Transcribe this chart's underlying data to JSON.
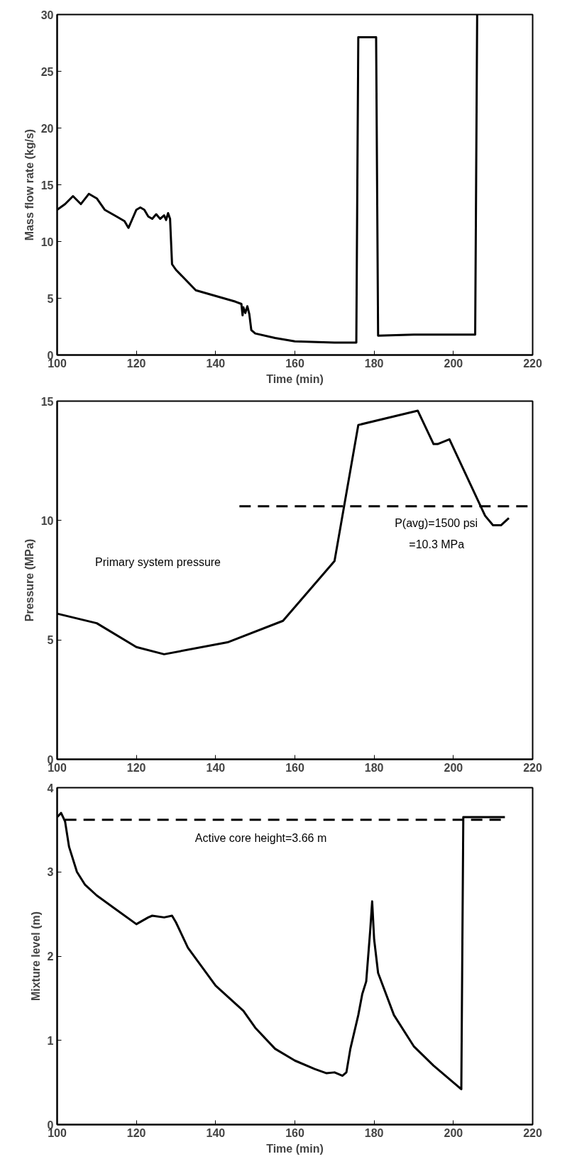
{
  "chart_data": [
    {
      "type": "line",
      "xlabel": "Time (min)",
      "ylabel": "Mass flow rate (kg/s)",
      "xlim": [
        100,
        220
      ],
      "ylim": [
        0,
        30
      ],
      "xticks": [
        100,
        120,
        140,
        160,
        180,
        200,
        220
      ],
      "yticks": [
        0,
        5,
        10,
        15,
        20,
        25,
        30
      ],
      "grid": false,
      "series": [
        {
          "color": "#000000",
          "line_style": "solid",
          "x": [
            100,
            102,
            104,
            106,
            108,
            110,
            112,
            115,
            117,
            118,
            119,
            120,
            121,
            122,
            123,
            124,
            125,
            126,
            127,
            127.5,
            128,
            128.5,
            129,
            130,
            135,
            140,
            145,
            146.5,
            146.8,
            147,
            147.5,
            148,
            148.5,
            149,
            150,
            155,
            160,
            170,
            175.5,
            176,
            180.5,
            181,
            190,
            205.5,
            206
          ],
          "values": [
            12.8,
            13.3,
            14,
            13.3,
            14.2,
            13.8,
            12.8,
            12.2,
            11.8,
            11.2,
            12,
            12.8,
            13,
            12.8,
            12.2,
            12,
            12.4,
            12,
            12.3,
            11.9,
            12.5,
            12,
            8,
            7.5,
            5.7,
            5.2,
            4.7,
            4.5,
            3.5,
            4.2,
            3.7,
            4.3,
            3.6,
            2.2,
            1.9,
            1.5,
            1.2,
            1.1,
            1.1,
            28,
            28,
            1.7,
            1.8,
            1.8,
            30
          ]
        }
      ]
    },
    {
      "type": "line",
      "ylabel": "Pressure (MPa)",
      "xlim": [
        100,
        220
      ],
      "ylim": [
        0,
        15
      ],
      "xticks": [
        100,
        120,
        140,
        160,
        180,
        200,
        220
      ],
      "yticks": [
        0,
        5,
        10,
        15
      ],
      "grid": false,
      "annotations": [
        "Primary system pressure",
        "P(avg)=1500 psi",
        "=10.3 MPa"
      ],
      "series": [
        {
          "color": "#000000",
          "line_style": "solid",
          "x": [
            100,
            110,
            120,
            127,
            143,
            157,
            170,
            176,
            191,
            195,
            196,
            199,
            208,
            210,
            212,
            214
          ],
          "values": [
            6.1,
            5.7,
            4.7,
            4.4,
            4.9,
            5.8,
            8.3,
            14,
            14.6,
            13.2,
            13.2,
            13.4,
            10.2,
            9.8,
            9.8,
            10.1
          ]
        },
        {
          "color": "#000000",
          "line_style": "dashed",
          "x": [
            146,
            220
          ],
          "values": [
            10.6,
            10.6
          ]
        }
      ]
    },
    {
      "type": "line",
      "xlabel": "Time (min)",
      "ylabel": "Mixture level (m)",
      "xlim": [
        100,
        220
      ],
      "ylim": [
        0,
        4
      ],
      "xticks": [
        100,
        120,
        140,
        160,
        180,
        200,
        220
      ],
      "yticks": [
        0,
        1,
        2,
        3,
        4
      ],
      "grid": false,
      "annotations": [
        "Active core height=3.66 m"
      ],
      "series": [
        {
          "color": "#000000",
          "line_style": "solid",
          "x": [
            100,
            101,
            102,
            103,
            105,
            107,
            110,
            115,
            120,
            123,
            124,
            127,
            129,
            130,
            133,
            140,
            147,
            150,
            155,
            160,
            165,
            168,
            170,
            172,
            173,
            174,
            176,
            177,
            178,
            179,
            179.5,
            180,
            181,
            185,
            190,
            195,
            200,
            202,
            202.5,
            213
          ],
          "values": [
            3.65,
            3.7,
            3.6,
            3.3,
            3,
            2.85,
            2.72,
            2.55,
            2.38,
            2.46,
            2.48,
            2.46,
            2.48,
            2.4,
            2.1,
            1.65,
            1.35,
            1.15,
            0.9,
            0.76,
            0.66,
            0.61,
            0.62,
            0.58,
            0.62,
            0.9,
            1.3,
            1.55,
            1.7,
            2.3,
            2.65,
            2.2,
            1.8,
            1.3,
            0.93,
            0.7,
            0.5,
            0.42,
            3.65,
            3.65
          ]
        },
        {
          "color": "#000000",
          "line_style": "dashed",
          "x": [
            102,
            213
          ],
          "values": [
            3.62,
            3.62
          ]
        }
      ]
    }
  ]
}
